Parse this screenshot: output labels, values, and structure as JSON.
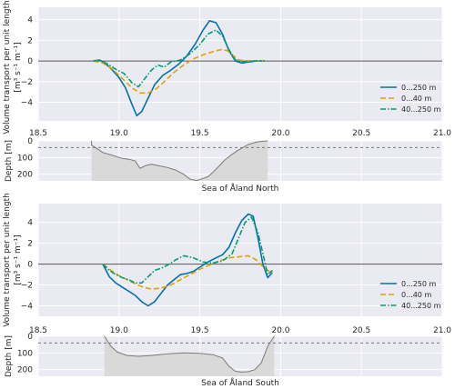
{
  "colors": {
    "background": "#eaeaf2",
    "grid": "#ffffff",
    "zero_line": "#555555",
    "depth_fill": "#d9d9d9",
    "depth_line": "#7a7a7a",
    "layer_line": "#777777"
  },
  "chart_data": [
    {
      "type": "line",
      "panel": "north-transport",
      "ylabel": "Volume transport per unit length",
      "yunit": "[m³ s⁻¹ m⁻¹]",
      "xlim": [
        18.5,
        21.0
      ],
      "ylim": [
        -5.8,
        5.2
      ],
      "xticks": [
        "18.5",
        "19.0",
        "19.5",
        "20.0",
        "20.5",
        "21.0"
      ],
      "yticks": [
        "−4",
        "−2",
        "0",
        "2",
        "4"
      ],
      "ytick_values": [
        -4,
        -2,
        0,
        2,
        4
      ],
      "grid": true,
      "legend": "lower-right",
      "series": [
        {
          "name": "0...250 m",
          "color": "#0072b2",
          "dash": "solid",
          "x": [
            18.84,
            18.88,
            18.92,
            18.96,
            19.0,
            19.04,
            19.08,
            19.11,
            19.14,
            19.18,
            19.22,
            19.27,
            19.32,
            19.37,
            19.42,
            19.47,
            19.52,
            19.56,
            19.6,
            19.64,
            19.68,
            19.72,
            19.76,
            19.8,
            19.85,
            19.9
          ],
          "y": [
            0.0,
            0.1,
            -0.3,
            -0.9,
            -1.6,
            -2.6,
            -4.2,
            -5.3,
            -4.9,
            -3.6,
            -2.3,
            -1.4,
            -0.9,
            -0.3,
            0.5,
            1.6,
            3.0,
            3.9,
            3.7,
            2.6,
            1.0,
            0.0,
            -0.2,
            -0.1,
            0.0,
            0.0
          ]
        },
        {
          "name": "0...40 m",
          "color": "#e69f00",
          "dash": "6,3",
          "x": [
            18.84,
            18.9,
            18.96,
            19.02,
            19.08,
            19.13,
            19.18,
            19.23,
            19.28,
            19.34,
            19.4,
            19.46,
            19.52,
            19.58,
            19.63,
            19.67,
            19.7,
            19.74,
            19.8,
            19.9
          ],
          "y": [
            0.0,
            -0.2,
            -0.8,
            -1.7,
            -2.6,
            -3.1,
            -3.1,
            -2.7,
            -2.0,
            -1.1,
            -0.4,
            0.2,
            0.6,
            0.9,
            1.1,
            1.0,
            0.6,
            0.1,
            0.0,
            0.0
          ]
        },
        {
          "name": "40...250 m",
          "color": "#009e73",
          "dash": "6,2,1.5,2",
          "x": [
            18.84,
            18.88,
            18.93,
            18.98,
            19.03,
            19.08,
            19.12,
            19.16,
            19.2,
            19.24,
            19.28,
            19.32,
            19.38,
            19.44,
            19.5,
            19.55,
            19.6,
            19.64,
            19.68,
            19.72,
            19.76,
            19.82,
            19.9
          ],
          "y": [
            0.0,
            0.1,
            -0.3,
            -0.8,
            -1.2,
            -2.1,
            -2.5,
            -1.7,
            -0.9,
            -0.4,
            -0.6,
            -0.1,
            0.1,
            0.7,
            1.6,
            2.6,
            3.0,
            2.4,
            1.1,
            0.1,
            -0.1,
            0.0,
            0.0
          ]
        }
      ]
    },
    {
      "type": "area",
      "panel": "north-depth",
      "ylabel": "Depth [m]",
      "xlabel": "Sea of Åland North",
      "xlim": [
        18.5,
        21.0
      ],
      "ylim": [
        240,
        0
      ],
      "yticks": [
        "0",
        "100",
        "200"
      ],
      "ytick_values": [
        0,
        100,
        200
      ],
      "layer_depth": 40,
      "x": [
        18.83,
        18.83,
        18.9,
        18.97,
        19.02,
        19.06,
        19.1,
        19.13,
        19.16,
        19.2,
        19.25,
        19.3,
        19.35,
        19.4,
        19.44,
        19.48,
        19.52,
        19.55,
        19.58,
        19.62,
        19.66,
        19.7,
        19.74,
        19.8,
        19.86,
        19.92,
        19.92
      ],
      "y": [
        0,
        25,
        70,
        90,
        105,
        110,
        120,
        165,
        150,
        140,
        150,
        160,
        175,
        200,
        230,
        238,
        225,
        215,
        190,
        150,
        110,
        80,
        55,
        22,
        5,
        0,
        0
      ]
    },
    {
      "type": "line",
      "panel": "south-transport",
      "ylabel": "Volume transport per unit length",
      "yunit": "[m³ s⁻¹ m⁻¹]",
      "xlim": [
        18.5,
        21.0
      ],
      "ylim": [
        -5.0,
        5.8
      ],
      "xticks": [
        "18.5",
        "19.0",
        "19.5",
        "20.0",
        "20.5",
        "21.0"
      ],
      "yticks": [
        "−4",
        "−2",
        "0",
        "2",
        "4"
      ],
      "ytick_values": [
        -4,
        -2,
        0,
        2,
        4
      ],
      "grid": true,
      "legend": "lower-right",
      "series": [
        {
          "name": "0...250 m",
          "color": "#0072b2",
          "dash": "solid",
          "x": [
            18.9,
            18.94,
            18.98,
            19.02,
            19.06,
            19.1,
            19.14,
            19.18,
            19.22,
            19.26,
            19.3,
            19.34,
            19.38,
            19.42,
            19.46,
            19.5,
            19.55,
            19.6,
            19.64,
            19.68,
            19.72,
            19.76,
            19.8,
            19.83,
            19.86,
            19.89,
            19.92,
            19.95
          ],
          "y": [
            0.0,
            -1.2,
            -1.8,
            -2.2,
            -2.6,
            -3.0,
            -3.6,
            -4.0,
            -3.6,
            -2.8,
            -2.0,
            -1.5,
            -1.0,
            -0.9,
            -0.7,
            -0.3,
            0.2,
            0.6,
            0.9,
            1.6,
            3.0,
            4.2,
            4.8,
            4.6,
            2.5,
            0.0,
            -1.3,
            -0.8
          ]
        },
        {
          "name": "0...40 m",
          "color": "#e69f00",
          "dash": "6,3",
          "x": [
            18.9,
            18.95,
            19.0,
            19.05,
            19.1,
            19.15,
            19.2,
            19.26,
            19.32,
            19.38,
            19.44,
            19.5,
            19.56,
            19.62,
            19.68,
            19.74,
            19.8,
            19.85,
            19.9,
            19.95
          ],
          "y": [
            0.0,
            -0.6,
            -1.1,
            -1.5,
            -1.9,
            -2.2,
            -2.4,
            -2.3,
            -2.0,
            -1.5,
            -1.0,
            -0.5,
            -0.1,
            0.3,
            0.6,
            0.7,
            0.8,
            0.4,
            -0.4,
            -0.9
          ]
        },
        {
          "name": "40...250 m",
          "color": "#009e73",
          "dash": "6,2,1.5,2",
          "x": [
            18.9,
            18.94,
            18.98,
            19.02,
            19.06,
            19.1,
            19.14,
            19.18,
            19.22,
            19.26,
            19.3,
            19.35,
            19.4,
            19.46,
            19.52,
            19.58,
            19.64,
            19.7,
            19.74,
            19.78,
            19.82,
            19.86,
            19.89,
            19.92,
            19.95
          ],
          "y": [
            0.0,
            -0.6,
            -1.0,
            -1.3,
            -1.5,
            -1.8,
            -1.8,
            -1.2,
            -0.6,
            -0.4,
            -0.1,
            0.4,
            0.8,
            0.6,
            0.2,
            0.1,
            0.3,
            1.0,
            2.5,
            4.0,
            4.5,
            3.0,
            1.0,
            -1.0,
            -0.6
          ]
        }
      ]
    },
    {
      "type": "area",
      "panel": "south-depth",
      "ylabel": "Depth [m]",
      "xlabel": "Sea of Åland South",
      "xlim": [
        18.5,
        21.0
      ],
      "ylim": [
        240,
        0
      ],
      "yticks": [
        "0",
        "100",
        "200"
      ],
      "ytick_values": [
        0,
        100,
        200
      ],
      "layer_depth": 40,
      "x": [
        18.91,
        18.91,
        18.95,
        18.99,
        19.05,
        19.12,
        19.2,
        19.3,
        19.4,
        19.5,
        19.58,
        19.64,
        19.68,
        19.72,
        19.76,
        19.8,
        19.84,
        19.88,
        19.92,
        19.96,
        19.96
      ],
      "y": [
        0,
        0,
        60,
        95,
        115,
        120,
        115,
        105,
        100,
        102,
        110,
        130,
        180,
        210,
        215,
        212,
        200,
        160,
        60,
        0,
        0
      ]
    }
  ]
}
